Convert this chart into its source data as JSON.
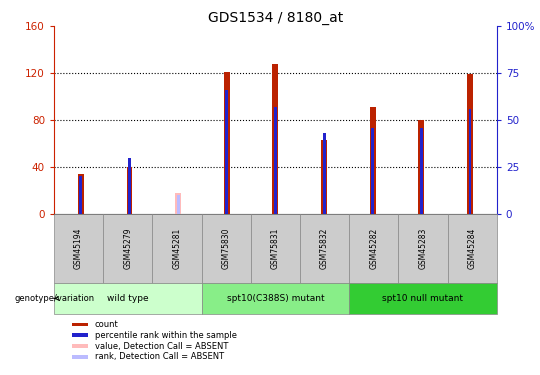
{
  "title": "GDS1534 / 8180_at",
  "samples": [
    "GSM45194",
    "GSM45279",
    "GSM45281",
    "GSM75830",
    "GSM75831",
    "GSM75832",
    "GSM45282",
    "GSM45283",
    "GSM45284"
  ],
  "count_values": [
    34,
    40,
    0,
    121,
    128,
    63,
    91,
    80,
    119
  ],
  "rank_values": [
    20,
    30,
    0,
    66,
    57,
    43,
    46,
    46,
    56
  ],
  "absent_value": [
    0,
    0,
    18,
    0,
    0,
    0,
    0,
    0,
    0
  ],
  "absent_rank": [
    0,
    0,
    10,
    0,
    0,
    0,
    0,
    0,
    0
  ],
  "is_absent": [
    false,
    false,
    true,
    false,
    false,
    false,
    false,
    false,
    false
  ],
  "groups": [
    {
      "label": "wild type",
      "start": 0,
      "end": 3,
      "color": "#ccffcc"
    },
    {
      "label": "spt10(C388S) mutant",
      "start": 3,
      "end": 6,
      "color": "#88ee88"
    },
    {
      "label": "spt10 null mutant",
      "start": 6,
      "end": 9,
      "color": "#33cc33"
    }
  ],
  "bar_color_present": "#bb2200",
  "bar_color_rank": "#2222cc",
  "bar_color_absent_value": "#ffbbbb",
  "bar_color_absent_rank": "#bbbbff",
  "ylim_left": [
    0,
    160
  ],
  "ylim_right": [
    0,
    100
  ],
  "yticks_left": [
    0,
    40,
    80,
    120,
    160
  ],
  "yticks_right": [
    0,
    25,
    50,
    75,
    100
  ],
  "ylabel_left_color": "#cc2200",
  "ylabel_right_color": "#2222cc",
  "legend_items": [
    {
      "label": "count",
      "color": "#bb2200"
    },
    {
      "label": "percentile rank within the sample",
      "color": "#2222cc"
    },
    {
      "label": "value, Detection Call = ABSENT",
      "color": "#ffbbbb"
    },
    {
      "label": "rank, Detection Call = ABSENT",
      "color": "#bbbbff"
    }
  ]
}
